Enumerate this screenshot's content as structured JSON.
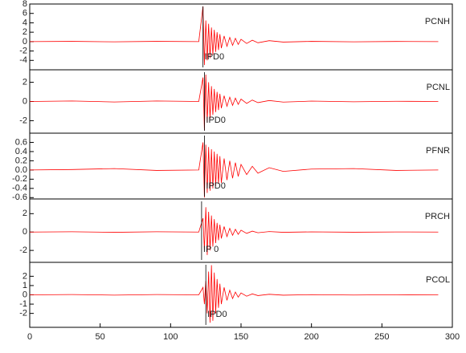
{
  "chart_data": [
    {
      "type": "line",
      "label": "PCNH",
      "color": "#ff0000",
      "xlim": [
        0,
        300
      ],
      "ylim": [
        -6,
        8
      ],
      "yticks": [
        -4,
        -2,
        0,
        2,
        4,
        6,
        8
      ],
      "annotation": {
        "text": "IPD0",
        "x": 123
      },
      "x": [
        0,
        30,
        60,
        90,
        120,
        123,
        124,
        125,
        126,
        127,
        128,
        129,
        130,
        131,
        132,
        133,
        134,
        135,
        136,
        138,
        140,
        142,
        144,
        146,
        148,
        150,
        154,
        158,
        162,
        170,
        180,
        200,
        230,
        260,
        290
      ],
      "values": [
        0,
        0.05,
        -0.05,
        0.05,
        0,
        7.5,
        -5,
        4.5,
        -4,
        3.8,
        -3.5,
        3,
        -2.8,
        2.5,
        -2.2,
        2,
        -1.8,
        1.6,
        -1.4,
        1.2,
        -1,
        0.9,
        -0.8,
        0.7,
        -0.6,
        0.5,
        -0.4,
        0.3,
        -0.25,
        0.2,
        -0.1,
        0.05,
        -0.05,
        0.03,
        0
      ]
    },
    {
      "type": "line",
      "label": "PCNL",
      "color": "#ff0000",
      "xlim": [
        0,
        300
      ],
      "ylim": [
        -3.3,
        3.3
      ],
      "yticks": [
        -2,
        0,
        2
      ],
      "annotation": {
        "text": "IPD0",
        "x": 124
      },
      "x": [
        0,
        30,
        60,
        90,
        120,
        123,
        124,
        125,
        126,
        127,
        128,
        129,
        130,
        131,
        132,
        133,
        134,
        135,
        136,
        138,
        140,
        142,
        144,
        146,
        148,
        150,
        154,
        158,
        162,
        170,
        180,
        200,
        230,
        260,
        290
      ],
      "values": [
        0,
        0.05,
        -0.05,
        0.05,
        0,
        2.5,
        -3,
        2.8,
        -2.2,
        2,
        -1.8,
        1.6,
        -1.4,
        1.3,
        -1.1,
        1,
        -0.9,
        0.8,
        -0.7,
        0.6,
        -0.5,
        0.45,
        -0.4,
        0.35,
        -0.3,
        0.25,
        -0.2,
        0.15,
        -0.12,
        0.1,
        -0.06,
        0.04,
        -0.03,
        0.02,
        0
      ]
    },
    {
      "type": "line",
      "label": "PFNR",
      "color": "#ff0000",
      "xlim": [
        0,
        300
      ],
      "ylim": [
        -0.63,
        0.8
      ],
      "yticks": [
        -0.6,
        -0.4,
        -0.2,
        {
          "value": 0,
          "label": "0.0"
        },
        0.2,
        0.4,
        0.6
      ],
      "annotation": {
        "text": "IPD0",
        "x": 124
      },
      "x": [
        0,
        30,
        60,
        90,
        120,
        123,
        124,
        125,
        126,
        127,
        128,
        129,
        130,
        131,
        132,
        133,
        134,
        135,
        136,
        138,
        140,
        142,
        144,
        146,
        148,
        150,
        154,
        158,
        162,
        170,
        180,
        200,
        230,
        260,
        290
      ],
      "values": [
        0,
        0.01,
        0.03,
        -0.01,
        0,
        0.6,
        -0.6,
        0.55,
        -0.5,
        0.5,
        -0.45,
        0.45,
        -0.4,
        0.4,
        -0.35,
        0.35,
        -0.3,
        0.3,
        -0.28,
        0.25,
        -0.22,
        0.2,
        -0.18,
        0.16,
        -0.14,
        0.12,
        -0.1,
        0.08,
        -0.07,
        0.05,
        -0.03,
        0.02,
        0.03,
        -0.01,
        0
      ]
    },
    {
      "type": "line",
      "label": "PRCH",
      "color": "#ff0000",
      "xlim": [
        0,
        300
      ],
      "ylim": [
        -3.3,
        3.6
      ],
      "yticks": [
        -2,
        0,
        2
      ],
      "annotation": {
        "text": "IP 0",
        "x": 122
      },
      "x": [
        0,
        30,
        60,
        90,
        120,
        123,
        124,
        125,
        126,
        127,
        128,
        129,
        130,
        131,
        132,
        133,
        134,
        135,
        136,
        138,
        140,
        142,
        144,
        146,
        148,
        150,
        154,
        158,
        162,
        170,
        180,
        200,
        230,
        260,
        290
      ],
      "values": [
        0,
        0.03,
        -0.03,
        0.03,
        0,
        1.5,
        -2,
        2.7,
        -2.5,
        2.2,
        -2,
        1.8,
        -1.6,
        1.4,
        -1.2,
        1,
        -0.9,
        0.8,
        -0.7,
        0.6,
        -0.5,
        0.4,
        -0.35,
        0.3,
        -0.25,
        0.2,
        -0.15,
        0.1,
        -0.08,
        0.05,
        -0.03,
        0.02,
        -0.02,
        0.01,
        0
      ]
    },
    {
      "type": "line",
      "label": "PCOL",
      "color": "#ff0000",
      "xlim": [
        0,
        300
      ],
      "ylim": [
        -3.5,
        3.5
      ],
      "yticks": [
        -2,
        -1,
        0,
        1,
        2
      ],
      "xticks": [
        0,
        50,
        100,
        150,
        200,
        250,
        300
      ],
      "annotation": {
        "text": "IPD0",
        "x": 125
      },
      "x": [
        0,
        30,
        60,
        90,
        120,
        123,
        124,
        125,
        126,
        127,
        128,
        129,
        130,
        131,
        132,
        133,
        134,
        135,
        136,
        138,
        140,
        142,
        144,
        146,
        148,
        150,
        154,
        158,
        162,
        170,
        180,
        200,
        230,
        260,
        290
      ],
      "values": [
        0,
        0.03,
        -0.03,
        0.03,
        0,
        0.8,
        -1,
        1.5,
        -2,
        2.5,
        -3,
        3.2,
        -2.8,
        2.4,
        -2,
        1.7,
        -1.4,
        1.2,
        -1,
        0.8,
        -0.6,
        0.5,
        -0.4,
        0.3,
        -0.25,
        0.2,
        -0.15,
        0.1,
        -0.08,
        0.06,
        -0.04,
        0.02,
        -0.02,
        0.01,
        0
      ]
    }
  ]
}
